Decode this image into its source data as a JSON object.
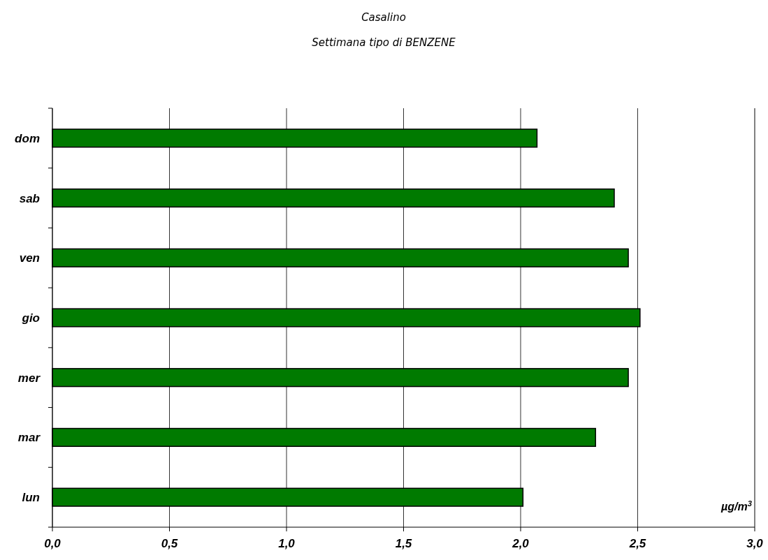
{
  "chart_data": {
    "type": "bar",
    "orientation": "horizontal",
    "title": "Casalino",
    "subtitle": "Settimana tipo di BENZENE",
    "xlabel": "µg/m$^{3}$",
    "categories": [
      "dom",
      "sab",
      "ven",
      "gio",
      "mer",
      "mar",
      "lun"
    ],
    "values": [
      2.07,
      2.4,
      2.46,
      2.51,
      2.46,
      2.32,
      2.01
    ],
    "color": "#007a00",
    "xlim": [
      0,
      3
    ],
    "xticks": [
      {
        "value": 0,
        "label": "0,0"
      },
      {
        "value": 0.5,
        "label": "0,5"
      },
      {
        "value": 1,
        "label": "1,0"
      },
      {
        "value": 1.5,
        "label": "1,5"
      },
      {
        "value": 2,
        "label": "2,0"
      },
      {
        "value": 2.5,
        "label": "2,5"
      },
      {
        "value": 3,
        "label": "3,0"
      }
    ],
    "grid": "x"
  }
}
